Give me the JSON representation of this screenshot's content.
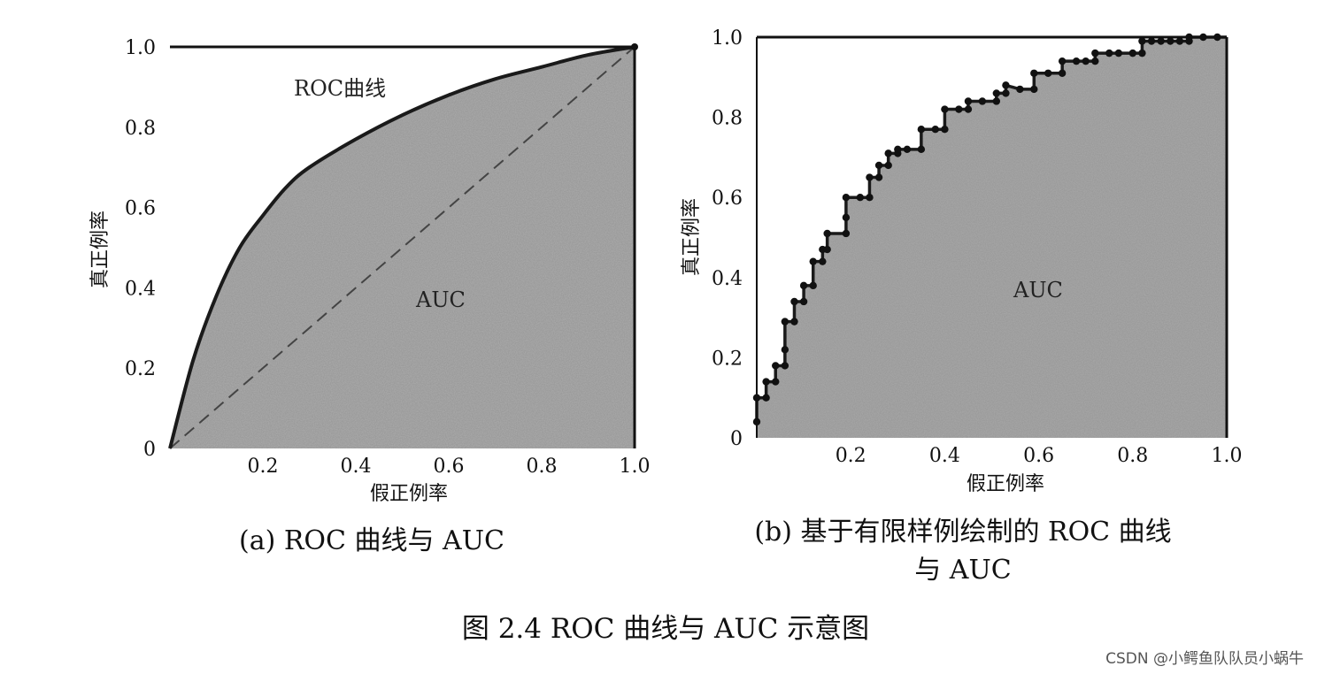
{
  "figure_title": "图 2.4   ROC 曲线与 AUC 示意图",
  "watermark": "CSDN @小鳄鱼队队员小蜗牛",
  "colors": {
    "area": "#9a9a9a",
    "curve": "#1a1a1a",
    "diagonal": "#444444"
  },
  "chart_data": [
    {
      "type": "area",
      "caption": "(a) ROC 曲线与 AUC",
      "xlabel": "假正例率",
      "ylabel": "真正例率",
      "xlim": [
        0,
        1
      ],
      "ylim": [
        0,
        1
      ],
      "x_ticks": [
        "0.2",
        "0.4",
        "0.6",
        "0.8",
        "1.0"
      ],
      "y_ticks": [
        "0",
        "0.2",
        "0.4",
        "0.6",
        "0.8",
        "1.0"
      ],
      "curve_label": "ROC曲线",
      "area_label": "AUC",
      "diagonal": true,
      "series": [
        {
          "x": [
            0,
            0.05,
            0.1,
            0.15,
            0.2,
            0.25,
            0.3,
            0.4,
            0.5,
            0.6,
            0.7,
            0.8,
            0.9,
            1.0
          ],
          "y": [
            0,
            0.22,
            0.38,
            0.5,
            0.58,
            0.65,
            0.7,
            0.77,
            0.83,
            0.88,
            0.92,
            0.95,
            0.98,
            1.0
          ]
        }
      ]
    },
    {
      "type": "area",
      "caption": [
        "(b) 基于有限样例绘制的 ROC 曲线",
        "与 AUC"
      ],
      "xlabel": "假正例率",
      "ylabel": "真正例率",
      "xlim": [
        0,
        1
      ],
      "ylim": [
        0,
        1
      ],
      "x_ticks": [
        "0.2",
        "0.4",
        "0.6",
        "0.8",
        "1.0"
      ],
      "y_ticks": [
        "0",
        "0.2",
        "0.4",
        "0.6",
        "0.8",
        "1.0"
      ],
      "area_label": "AUC",
      "points": [
        [
          0,
          0.04
        ],
        [
          0,
          0.1
        ],
        [
          0.02,
          0.1
        ],
        [
          0.02,
          0.14
        ],
        [
          0.04,
          0.14
        ],
        [
          0.04,
          0.18
        ],
        [
          0.06,
          0.18
        ],
        [
          0.06,
          0.22
        ],
        [
          0.06,
          0.29
        ],
        [
          0.08,
          0.29
        ],
        [
          0.08,
          0.34
        ],
        [
          0.1,
          0.34
        ],
        [
          0.1,
          0.38
        ],
        [
          0.12,
          0.38
        ],
        [
          0.12,
          0.44
        ],
        [
          0.14,
          0.44
        ],
        [
          0.14,
          0.47
        ],
        [
          0.15,
          0.47
        ],
        [
          0.15,
          0.51
        ],
        [
          0.19,
          0.51
        ],
        [
          0.19,
          0.55
        ],
        [
          0.19,
          0.6
        ],
        [
          0.22,
          0.6
        ],
        [
          0.24,
          0.6
        ],
        [
          0.24,
          0.65
        ],
        [
          0.26,
          0.65
        ],
        [
          0.26,
          0.68
        ],
        [
          0.28,
          0.68
        ],
        [
          0.28,
          0.71
        ],
        [
          0.3,
          0.71
        ],
        [
          0.3,
          0.72
        ],
        [
          0.32,
          0.72
        ],
        [
          0.35,
          0.72
        ],
        [
          0.35,
          0.77
        ],
        [
          0.38,
          0.77
        ],
        [
          0.4,
          0.77
        ],
        [
          0.4,
          0.82
        ],
        [
          0.43,
          0.82
        ],
        [
          0.45,
          0.82
        ],
        [
          0.45,
          0.84
        ],
        [
          0.48,
          0.84
        ],
        [
          0.51,
          0.84
        ],
        [
          0.51,
          0.86
        ],
        [
          0.53,
          0.86
        ],
        [
          0.53,
          0.88
        ],
        [
          0.56,
          0.87
        ],
        [
          0.59,
          0.87
        ],
        [
          0.59,
          0.91
        ],
        [
          0.62,
          0.91
        ],
        [
          0.65,
          0.91
        ],
        [
          0.65,
          0.94
        ],
        [
          0.68,
          0.94
        ],
        [
          0.7,
          0.94
        ],
        [
          0.72,
          0.94
        ],
        [
          0.72,
          0.96
        ],
        [
          0.75,
          0.96
        ],
        [
          0.77,
          0.96
        ],
        [
          0.8,
          0.96
        ],
        [
          0.82,
          0.96
        ],
        [
          0.82,
          0.99
        ],
        [
          0.84,
          0.99
        ],
        [
          0.86,
          0.99
        ],
        [
          0.88,
          0.99
        ],
        [
          0.9,
          0.99
        ],
        [
          0.92,
          0.99
        ],
        [
          0.92,
          1.0
        ],
        [
          0.95,
          1.0
        ],
        [
          0.98,
          1.0
        ]
      ]
    }
  ]
}
